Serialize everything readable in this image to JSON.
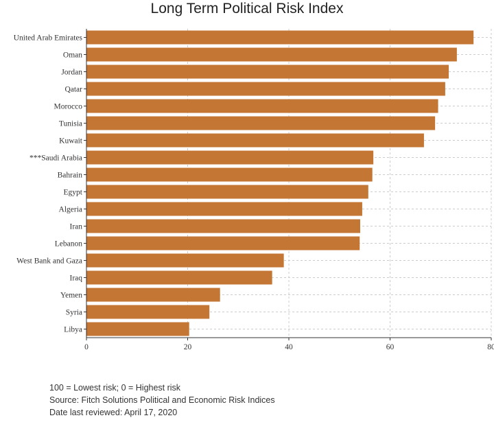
{
  "chart_data": {
    "type": "bar",
    "orientation": "horizontal",
    "title": "Long Term Political Risk Index",
    "xlabel": "",
    "ylabel": "",
    "xlim": [
      0,
      80
    ],
    "x_ticks": [
      0,
      20,
      40,
      60,
      80
    ],
    "grid": true,
    "bar_color": "#c47634",
    "categories": [
      "United Arab Emirates",
      "Oman",
      "Jordan",
      "Qatar",
      "Morocco",
      "Tunisia",
      "Kuwait",
      "***Saudi Arabia",
      "Bahrain",
      "Egypt",
      "Algeria",
      "Iran",
      "Lebanon",
      "West Bank and Gaza",
      "Iraq",
      "Yemen",
      "Syria",
      "Libya"
    ],
    "values": [
      76.5,
      73.2,
      71.6,
      70.9,
      69.5,
      68.9,
      66.7,
      56.7,
      56.5,
      55.7,
      54.5,
      54.1,
      54.0,
      39.0,
      36.7,
      26.4,
      24.3,
      20.3
    ]
  },
  "notes": {
    "line1": "100 = Lowest risk; 0 = Highest risk",
    "line2": "Source: Fitch Solutions Political and Economic Risk Indices",
    "line3": "Date last reviewed: April 17, 2020"
  }
}
